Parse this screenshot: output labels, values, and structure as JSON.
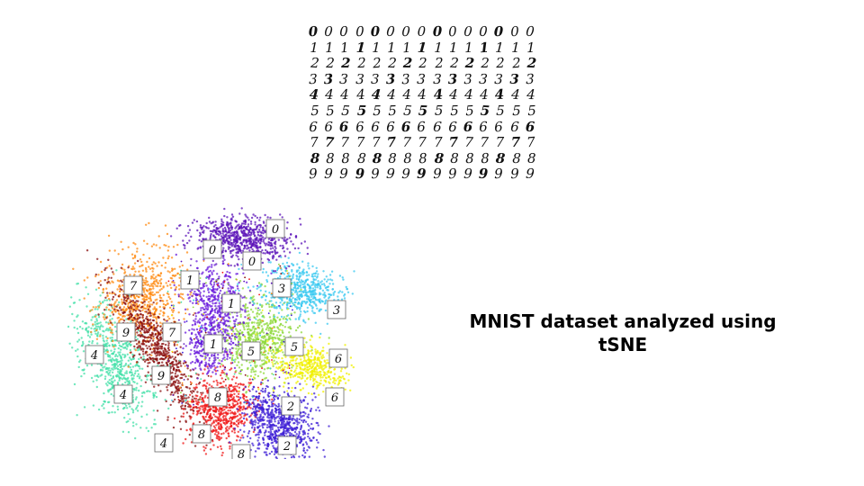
{
  "caption": {
    "line1": "MNIST dataset analyzed using",
    "line2": "tSNE"
  },
  "digit_grid": {
    "rows": [
      [
        "0",
        "0",
        "0",
        "0",
        "0",
        "0",
        "0",
        "0",
        "0",
        "0",
        "0",
        "0",
        "0",
        "0",
        "0"
      ],
      [
        "1",
        "1",
        "1",
        "1",
        "1",
        "1",
        "1",
        "1",
        "1",
        "1",
        "1",
        "1",
        "1",
        "1",
        "1"
      ],
      [
        "2",
        "2",
        "2",
        "2",
        "2",
        "2",
        "2",
        "2",
        "2",
        "2",
        "2",
        "2",
        "2",
        "2",
        "2"
      ],
      [
        "3",
        "3",
        "3",
        "3",
        "3",
        "3",
        "3",
        "3",
        "3",
        "3",
        "3",
        "3",
        "3",
        "3",
        "3"
      ],
      [
        "4",
        "4",
        "4",
        "4",
        "4",
        "4",
        "4",
        "4",
        "4",
        "4",
        "4",
        "4",
        "4",
        "4",
        "4"
      ],
      [
        "5",
        "5",
        "5",
        "5",
        "5",
        "5",
        "5",
        "5",
        "5",
        "5",
        "5",
        "5",
        "5",
        "5",
        "5"
      ],
      [
        "6",
        "6",
        "6",
        "6",
        "6",
        "6",
        "6",
        "6",
        "6",
        "6",
        "6",
        "6",
        "6",
        "6",
        "6"
      ],
      [
        "7",
        "7",
        "7",
        "7",
        "7",
        "7",
        "7",
        "7",
        "7",
        "7",
        "7",
        "7",
        "7",
        "7",
        "7"
      ],
      [
        "8",
        "8",
        "8",
        "8",
        "8",
        "8",
        "8",
        "8",
        "8",
        "8",
        "8",
        "8",
        "8",
        "8",
        "8"
      ],
      [
        "9",
        "9",
        "9",
        "9",
        "9",
        "9",
        "9",
        "9",
        "9",
        "9",
        "9",
        "9",
        "9",
        "9",
        "9"
      ]
    ]
  },
  "chart_data": {
    "type": "scatter",
    "title": "",
    "xlabel": "",
    "ylabel": "",
    "grid": false,
    "legend": "none",
    "series": [
      {
        "name": "0",
        "color": "#5b13b8"
      },
      {
        "name": "1",
        "color": "#6a1bdc"
      },
      {
        "name": "2",
        "color": "#3d1fd6"
      },
      {
        "name": "3",
        "color": "#38c8f0"
      },
      {
        "name": "4",
        "color": "#44e0a8"
      },
      {
        "name": "5",
        "color": "#8ed83a"
      },
      {
        "name": "6",
        "color": "#f0f000"
      },
      {
        "name": "7",
        "color": "#ff8a10"
      },
      {
        "name": "8",
        "color": "#f01818"
      },
      {
        "name": "9",
        "color": "#8a0e0e"
      }
    ],
    "annotations": [
      "0",
      "0",
      "0",
      "1",
      "1",
      "1",
      "2",
      "2",
      "3",
      "3",
      "4",
      "4",
      "4",
      "5",
      "5",
      "6",
      "6",
      "7",
      "7",
      "8",
      "8",
      "8",
      "9",
      "9"
    ]
  }
}
